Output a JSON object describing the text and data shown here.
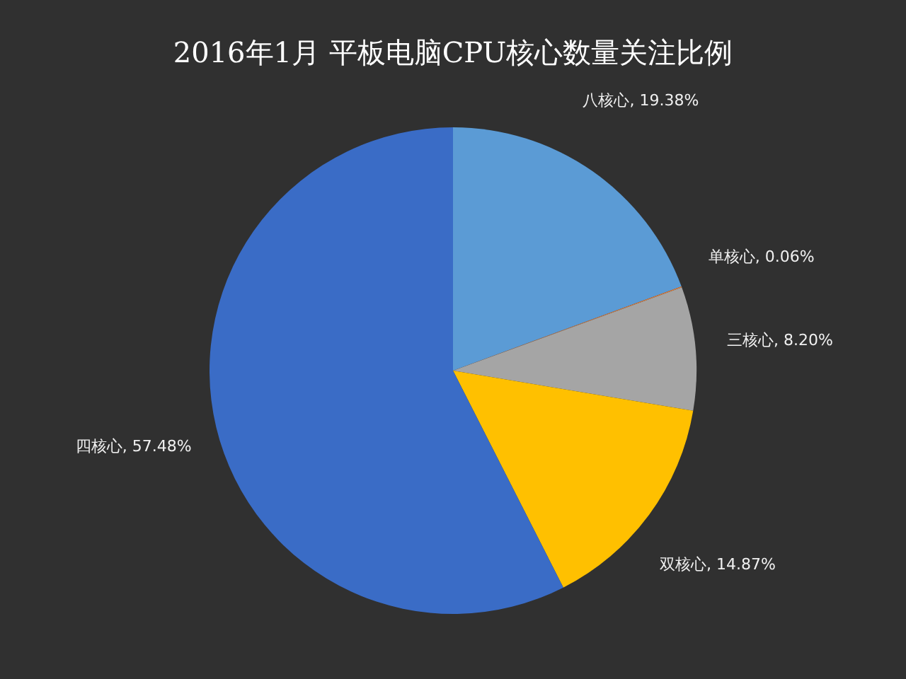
{
  "chart_data": {
    "type": "pie",
    "title": "2016年1月 平板电脑CPU核心数量关注比例",
    "categories": [
      "八核心",
      "单核心",
      "三核心",
      "双核心",
      "四核心"
    ],
    "values": [
      19.38,
      0.06,
      8.2,
      14.87,
      57.48
    ],
    "colors": [
      "#5b9bd5",
      "#ed7d31",
      "#a5a5a5",
      "#ffc000",
      "#3a6cc6"
    ],
    "value_labels": [
      "19.38%",
      "0.06%",
      "8.20%",
      "14.87%",
      "57.48%"
    ]
  }
}
